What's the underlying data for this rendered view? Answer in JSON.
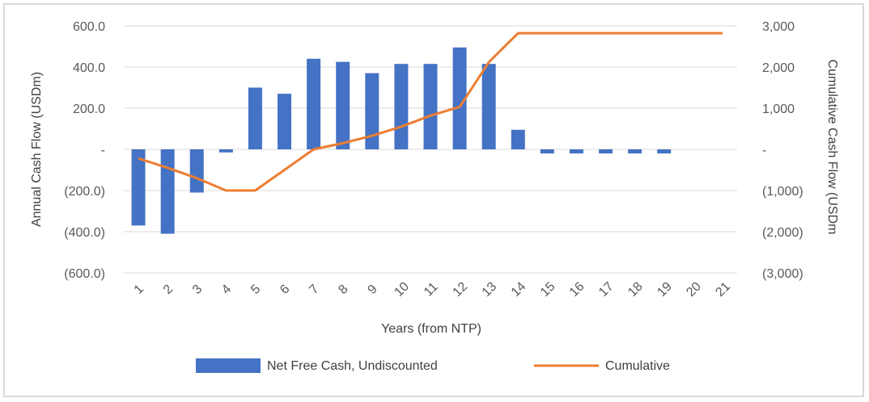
{
  "chart_data": {
    "type": "bar",
    "categories": [
      "1",
      "2",
      "3",
      "4",
      "5",
      "6",
      "7",
      "8",
      "9",
      "10",
      "11",
      "12",
      "13",
      "14",
      "15",
      "16",
      "17",
      "18",
      "19",
      "20",
      "21"
    ],
    "xlabel": "Years (from NTP)",
    "ylabel": "Annual Cash Flow (USDm)",
    "y2label": "Cumulative Cash Flow (USDm",
    "ylim": [
      -600,
      600
    ],
    "y2lim": [
      -3000,
      3000
    ],
    "ytick_labels": [
      "600.0",
      "400.0",
      "200.0",
      "-",
      "(200.0)",
      "(400.0)",
      "(600.0)"
    ],
    "y2tick_labels": [
      "3,000",
      "2,000",
      "1,000",
      "-",
      "(1,000)",
      "(2,000)",
      "(3,000)"
    ],
    "grid": true,
    "legend_position": "bottom",
    "series": [
      {
        "name": "Net Free Cash, Undiscounted",
        "type": "bar",
        "axis": "left",
        "color": "#4472c4",
        "values": [
          -370,
          -410,
          -210,
          -15,
          300,
          270,
          440,
          425,
          370,
          415,
          415,
          495,
          415,
          95,
          -20,
          -20,
          -20,
          -20,
          -20,
          0,
          0
        ]
      },
      {
        "name": "Cumulative",
        "type": "line",
        "axis": "right",
        "color": "#ed7d31",
        "values": [
          -220,
          -450,
          -700,
          -1000,
          -1000,
          -500,
          0,
          150,
          330,
          550,
          820,
          1030,
          2120,
          2820,
          2820,
          2820,
          2820,
          2820,
          2820,
          2820,
          2820
        ]
      }
    ]
  }
}
